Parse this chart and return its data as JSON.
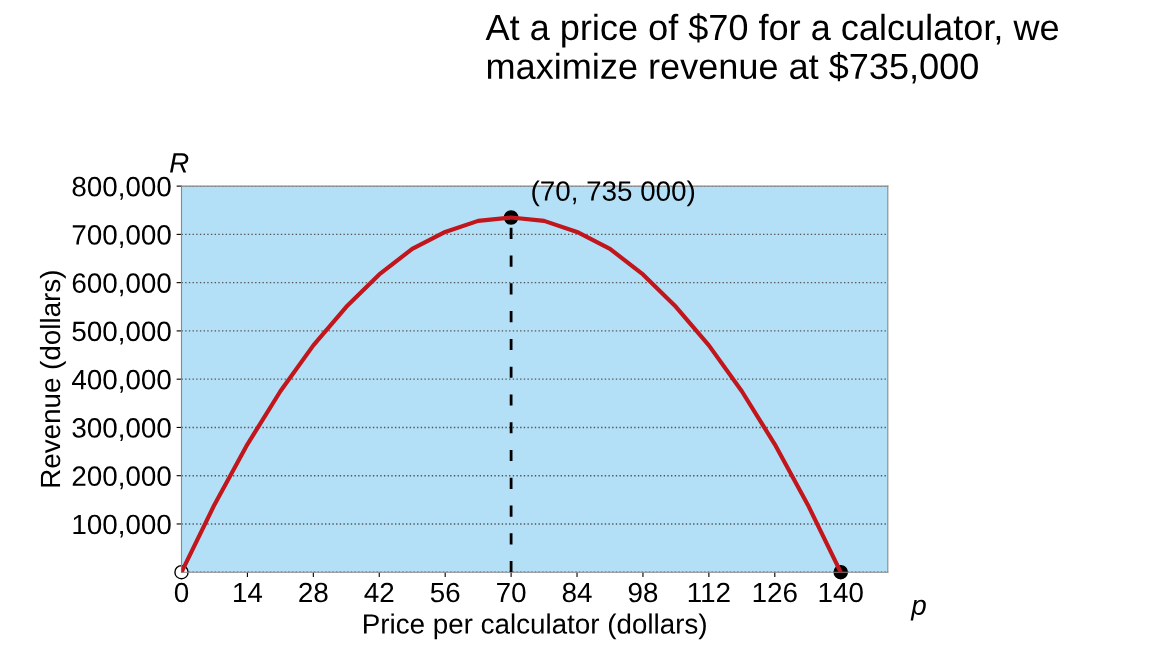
{
  "chart_data": {
    "type": "line",
    "xlabel": "Price per calculator (dollars)",
    "ylabel": "Revenue (dollars)",
    "x": [
      0,
      7,
      14,
      21,
      28,
      35,
      42,
      49,
      56,
      63,
      70,
      77,
      84,
      91,
      98,
      105,
      112,
      119,
      126,
      133,
      140
    ],
    "series": [
      {
        "color": "#c0161c",
        "line_style": "solid",
        "values": [
          0,
          140000,
          265000,
          375000,
          470000,
          550000,
          617000,
          670000,
          705000,
          728000,
          735000,
          728000,
          705000,
          670000,
          617000,
          550000,
          470000,
          375000,
          265000,
          140000,
          0
        ]
      },
      {
        "type": "line",
        "color": "#000000",
        "line_style": "dashed",
        "x": [
          70,
          70
        ],
        "values": [
          0,
          735000
        ]
      },
      {
        "type": "scatter",
        "x": [
          0,
          70,
          140
        ],
        "values": [
          0,
          735000,
          0
        ],
        "colors": [
          "#ffffff",
          "#000000",
          "#000000"
        ]
      }
    ],
    "xlim": [
      0,
      150
    ],
    "xticks": [
      0,
      14,
      28,
      42,
      56,
      70,
      84,
      98,
      112,
      126,
      140
    ],
    "ylim": [
      0,
      800000
    ],
    "yticks": [
      {
        "value": 0,
        "label": null
      },
      {
        "value": 100000,
        "label": "100,000"
      },
      {
        "value": 200000,
        "label": "200,000"
      },
      {
        "value": 300000,
        "label": "300,000"
      },
      {
        "value": 400000,
        "label": "400,000"
      },
      {
        "value": 500000,
        "label": "500,000"
      },
      {
        "value": 600000,
        "label": "600,000"
      },
      {
        "value": 700000,
        "label": "700,000"
      },
      {
        "value": 800000,
        "label": "800,000"
      }
    ],
    "grid": "y",
    "legend": false,
    "annotations": [
      "At a price of $70 for a calculator, we maximize revenue at $735,000",
      "R",
      "p",
      {
        "text": "(70, 735 000)",
        "x": 70,
        "y": 735000
      }
    ]
  }
}
